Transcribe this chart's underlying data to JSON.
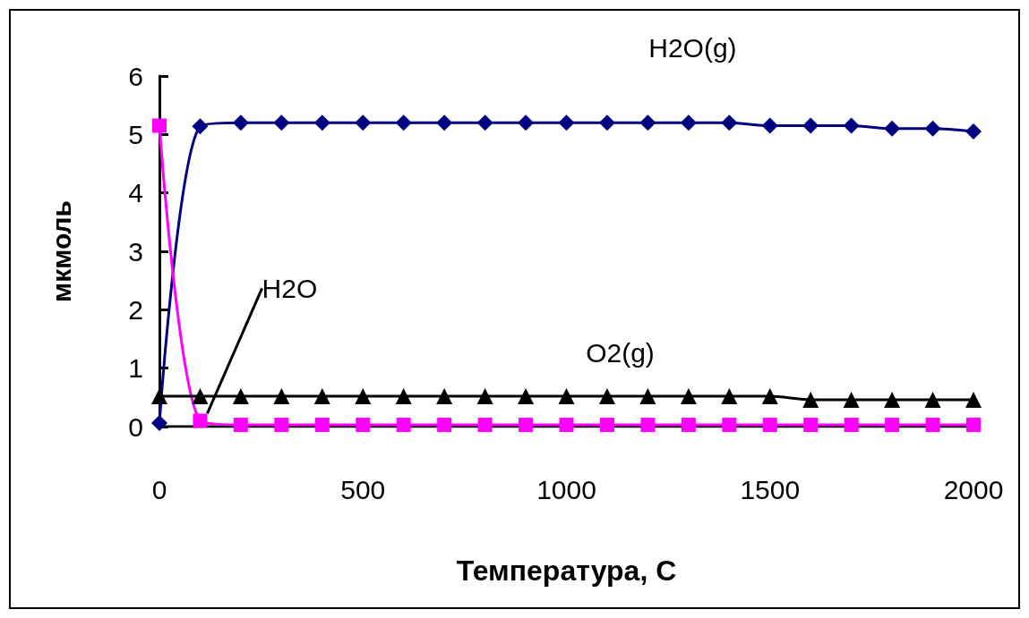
{
  "chart_data": {
    "type": "line",
    "xlabel": "Температура, С",
    "ylabel": "мкмоль",
    "x": [
      0,
      100,
      200,
      300,
      400,
      500,
      600,
      700,
      800,
      900,
      1000,
      1100,
      1200,
      1300,
      1400,
      1500,
      1600,
      1700,
      1800,
      1900,
      2000
    ],
    "series": [
      {
        "name": "H2O(g)",
        "color": "#000080",
        "marker": "diamond",
        "values": [
          0.06,
          5.14,
          5.2,
          5.2,
          5.2,
          5.2,
          5.2,
          5.2,
          5.2,
          5.2,
          5.2,
          5.2,
          5.2,
          5.2,
          5.2,
          5.15,
          5.15,
          5.15,
          5.1,
          5.1,
          5.05
        ]
      },
      {
        "name": "H2O",
        "color": "#ff00ff",
        "marker": "square",
        "values": [
          5.15,
          0.1,
          0.03,
          0.03,
          0.03,
          0.03,
          0.03,
          0.03,
          0.03,
          0.03,
          0.03,
          0.03,
          0.03,
          0.03,
          0.03,
          0.03,
          0.03,
          0.03,
          0.03,
          0.03,
          0.03
        ]
      },
      {
        "name": "O2(g)",
        "color": "#000000",
        "marker": "triangle",
        "values": [
          0.52,
          0.52,
          0.52,
          0.52,
          0.52,
          0.52,
          0.52,
          0.52,
          0.52,
          0.52,
          0.52,
          0.52,
          0.52,
          0.52,
          0.52,
          0.52,
          0.46,
          0.46,
          0.46,
          0.46,
          0.46
        ]
      }
    ],
    "xlim": [
      0,
      2000
    ],
    "xticks": [
      0,
      500,
      1000,
      1500,
      2000
    ],
    "ylim": [
      0,
      6
    ],
    "yticks": [
      0,
      1,
      2,
      3,
      4,
      5,
      6
    ],
    "grid": false,
    "legend": false,
    "line_style": "solid"
  }
}
